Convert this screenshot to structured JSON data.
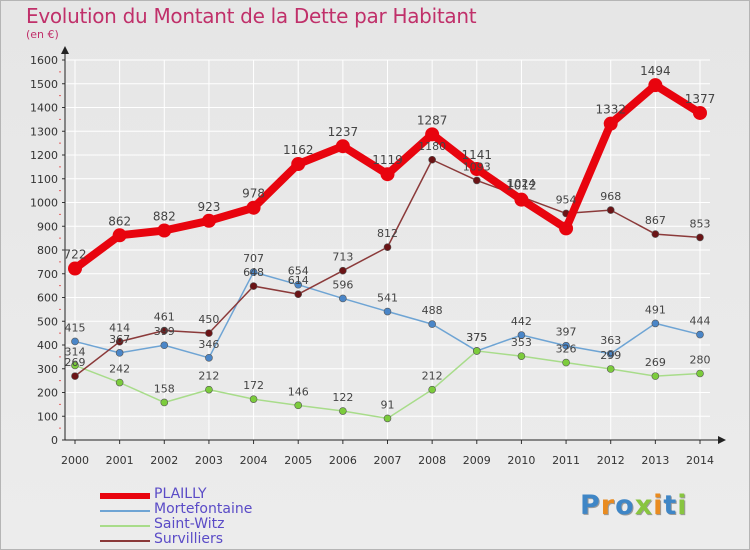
{
  "header": {
    "title": "Evolution du Montant de la Dette par Habitant",
    "subtitle": "(en €)"
  },
  "logo": {
    "text": "Proxiti"
  },
  "chart_data": {
    "type": "line",
    "title": "Evolution du Montant de la Dette par Habitant",
    "subtitle": "(en €)",
    "xlabel": "",
    "ylabel": "",
    "x": [
      "2000",
      "2001",
      "2002",
      "2003",
      "2004",
      "2005",
      "2006",
      "2007",
      "2008",
      "2009",
      "2010",
      "2011",
      "2012",
      "2013",
      "2014"
    ],
    "ylim": [
      0,
      1600
    ],
    "yticks": [
      0,
      100,
      200,
      300,
      400,
      500,
      600,
      700,
      800,
      900,
      1000,
      1100,
      1200,
      1300,
      1400,
      1500,
      1600
    ],
    "grid": true,
    "legend_position": "bottom-left",
    "series": [
      {
        "name": "PLAILLY",
        "color": "#e8040e",
        "point_color": "#e8040e",
        "values": [
          722,
          862,
          882,
          923,
          978,
          1162,
          1237,
          1119,
          1287,
          1141,
          1012,
          891,
          1332,
          1494,
          1377
        ],
        "labels": [
          "722",
          "862",
          "882",
          "923",
          "978",
          "1162",
          "1237",
          "1119",
          "1287",
          "1141",
          "1012",
          "",
          "1332",
          "1494",
          "1377"
        ]
      },
      {
        "name": "Mortefontaine",
        "color": "#6ea4d4",
        "point_color": "#4a86c8",
        "values": [
          415,
          367,
          399,
          346,
          707,
          654,
          596,
          541,
          488,
          375,
          442,
          397,
          363,
          491,
          444
        ],
        "labels": [
          "415",
          "367",
          "399",
          "346",
          "707",
          "654",
          "596",
          "541",
          "488",
          "375",
          "442",
          "397",
          "363",
          "491",
          "444"
        ]
      },
      {
        "name": "Saint-Witz",
        "color": "#a8dc8a",
        "point_color": "#7ccc3c",
        "values": [
          314,
          242,
          158,
          212,
          172,
          146,
          122,
          91,
          212,
          375,
          353,
          326,
          299,
          269,
          280
        ],
        "labels": [
          "314",
          "242",
          "158",
          "212",
          "172",
          "146",
          "122",
          "91",
          "212",
          "375",
          "353",
          "326",
          "299",
          "269",
          "280"
        ]
      },
      {
        "name": "Survilliers",
        "color": "#8b3a3a",
        "point_color": "#6b1416",
        "values": [
          269,
          414,
          461,
          450,
          648,
          614,
          713,
          812,
          1180,
          1093,
          1024,
          954,
          968,
          867,
          853
        ],
        "labels": [
          "269",
          "414",
          "461",
          "450",
          "648",
          "614",
          "713",
          "812",
          "1180",
          "1093",
          "1024",
          "954",
          "968",
          "867",
          "853"
        ]
      }
    ]
  }
}
